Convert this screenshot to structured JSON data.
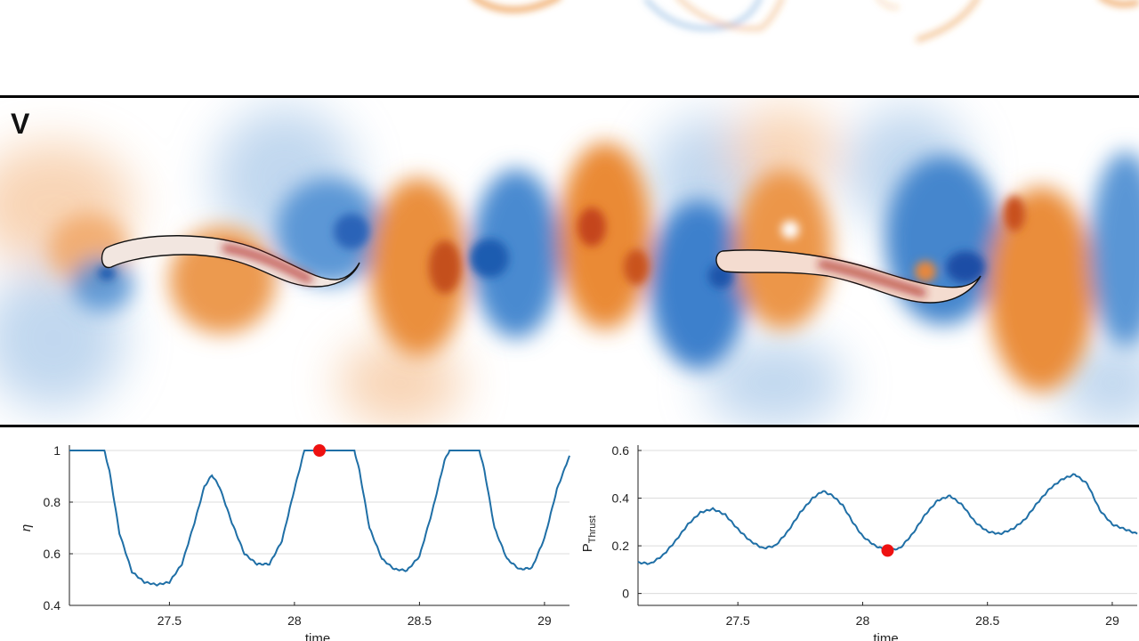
{
  "panel_label": "V",
  "colors": {
    "positive": "#e8852a",
    "positive_dark": "#b31a1a",
    "negative": "#2f78c8",
    "line": "#1f6fa6",
    "marker": "#ee1111"
  },
  "chart_data": [
    {
      "type": "line",
      "title": "",
      "xlabel": "time",
      "ylabel": "η",
      "xlim": [
        27.1,
        29.1
      ],
      "ylim": [
        0.4,
        1.0
      ],
      "xticks": [
        27.5,
        28,
        28.5,
        29
      ],
      "xtick_labels": [
        "27.5",
        "28",
        "28.5",
        "29"
      ],
      "yticks": [
        0.4,
        0.6,
        0.8,
        1.0
      ],
      "ytick_labels": [
        "0.4",
        "0.6",
        "0.8",
        "1"
      ],
      "grid": "horizontal",
      "x": [
        27.1,
        27.24,
        27.26,
        27.3,
        27.35,
        27.4,
        27.45,
        27.5,
        27.55,
        27.6,
        27.64,
        27.67,
        27.7,
        27.75,
        27.8,
        27.85,
        27.9,
        27.95,
        28.0,
        28.04,
        28.08,
        28.12,
        28.16,
        28.2,
        28.24,
        28.26,
        28.3,
        28.35,
        28.4,
        28.45,
        28.5,
        28.55,
        28.6,
        28.62,
        28.66,
        28.7,
        28.74,
        28.76,
        28.8,
        28.85,
        28.9,
        28.95,
        29.0,
        29.05,
        29.1
      ],
      "y": [
        1.0,
        1.0,
        0.92,
        0.68,
        0.53,
        0.49,
        0.48,
        0.49,
        0.56,
        0.72,
        0.86,
        0.905,
        0.86,
        0.72,
        0.6,
        0.56,
        0.56,
        0.65,
        0.85,
        1.0,
        1.0,
        1.0,
        1.0,
        1.0,
        1.0,
        0.92,
        0.7,
        0.58,
        0.54,
        0.535,
        0.59,
        0.76,
        0.96,
        1.0,
        1.0,
        1.0,
        1.0,
        0.92,
        0.7,
        0.58,
        0.54,
        0.545,
        0.66,
        0.85,
        0.98
      ],
      "marker": {
        "x": 28.1,
        "y": 1.0
      }
    },
    {
      "type": "line",
      "title": "",
      "xlabel": "time",
      "ylabel": "P",
      "ylabel_sub": "Thrust",
      "xlim": [
        27.1,
        29.1
      ],
      "ylim": [
        -0.05,
        0.6
      ],
      "xticks": [
        27.5,
        28,
        28.5,
        29
      ],
      "xtick_labels": [
        "27.5",
        "28",
        "28.5",
        "29"
      ],
      "yticks": [
        0,
        0.2,
        0.4,
        0.6
      ],
      "ytick_labels": [
        "0",
        "0.2",
        "0.4",
        "0.6"
      ],
      "grid": "horizontal",
      "x": [
        27.1,
        27.15,
        27.2,
        27.25,
        27.3,
        27.35,
        27.4,
        27.45,
        27.5,
        27.55,
        27.6,
        27.65,
        27.7,
        27.75,
        27.8,
        27.84,
        27.88,
        27.92,
        27.96,
        28.0,
        28.05,
        28.1,
        28.15,
        28.2,
        28.25,
        28.3,
        28.35,
        28.4,
        28.45,
        28.5,
        28.55,
        28.6,
        28.65,
        28.7,
        28.75,
        28.8,
        28.85,
        28.9,
        28.95,
        29.0,
        29.05,
        29.1
      ],
      "y": [
        0.13,
        0.125,
        0.16,
        0.22,
        0.29,
        0.34,
        0.355,
        0.33,
        0.27,
        0.22,
        0.19,
        0.2,
        0.26,
        0.34,
        0.4,
        0.43,
        0.41,
        0.37,
        0.3,
        0.24,
        0.2,
        0.18,
        0.19,
        0.25,
        0.33,
        0.39,
        0.41,
        0.37,
        0.3,
        0.26,
        0.25,
        0.27,
        0.31,
        0.38,
        0.44,
        0.48,
        0.5,
        0.46,
        0.35,
        0.29,
        0.27,
        0.25
      ],
      "marker": {
        "x": 28.1,
        "y": 0.18
      }
    }
  ]
}
